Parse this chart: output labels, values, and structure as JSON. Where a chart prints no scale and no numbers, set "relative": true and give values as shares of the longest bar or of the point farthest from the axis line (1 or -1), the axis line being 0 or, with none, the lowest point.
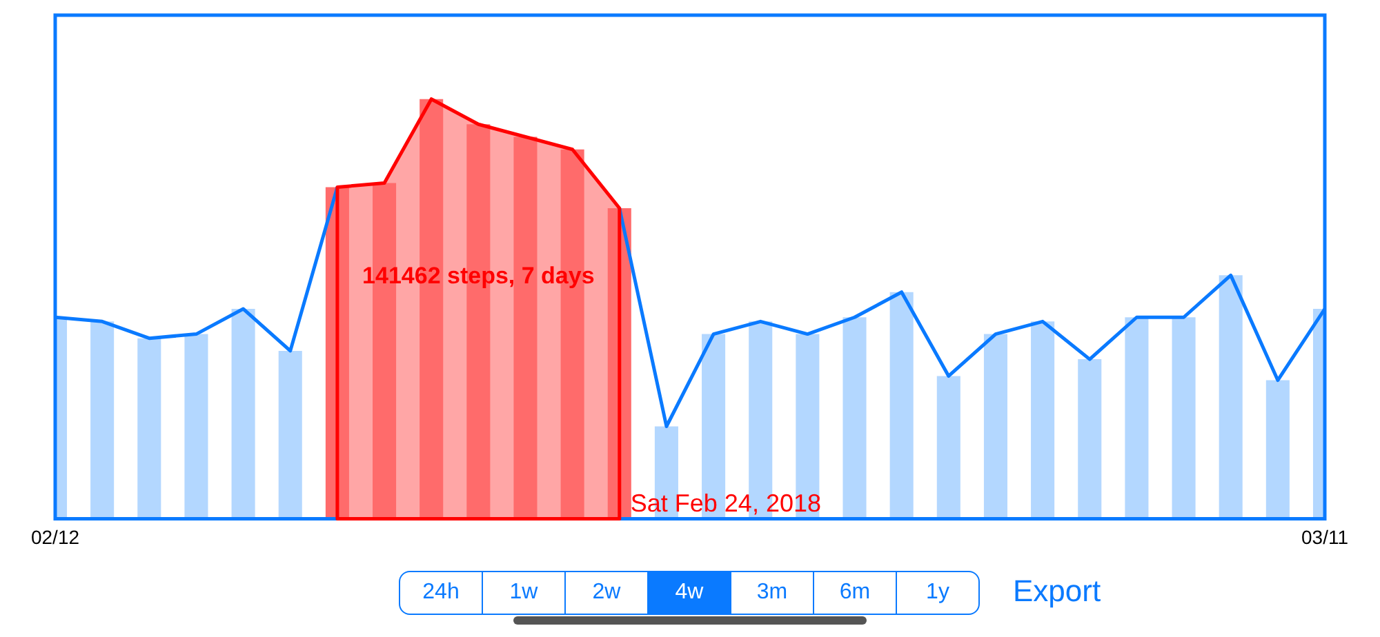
{
  "chart_data": {
    "type": "bar",
    "relative": true,
    "x": [
      "2018-02-12",
      "2018-02-13",
      "2018-02-14",
      "2018-02-15",
      "2018-02-16",
      "2018-02-17",
      "2018-02-18",
      "2018-02-19",
      "2018-02-20",
      "2018-02-21",
      "2018-02-22",
      "2018-02-23",
      "2018-02-24",
      "2018-02-25",
      "2018-02-26",
      "2018-02-27",
      "2018-02-28",
      "2018-03-01",
      "2018-03-02",
      "2018-03-03",
      "2018-03-04",
      "2018-03-05",
      "2018-03-06",
      "2018-03-07",
      "2018-03-08",
      "2018-03-09",
      "2018-03-10",
      "2018-03-11"
    ],
    "xlim": [
      "2018-02-12",
      "2018-03-11"
    ],
    "xticks": [
      {
        "value": "2018-02-12",
        "label": "02/12"
      },
      {
        "value": "2018-03-11",
        "label": "03/11"
      }
    ],
    "series": [
      {
        "color": "#b3d7ff",
        "colors": [
          null,
          null,
          null,
          null,
          null,
          null,
          "#ff6b6b",
          "#ff6b6b",
          "#ff6b6b",
          "#ff6b6b",
          "#ff6b6b",
          "#ff6b6b",
          "#ff6b6b",
          null,
          null,
          null,
          null,
          null,
          null,
          null,
          null,
          null,
          null,
          null,
          null,
          null,
          null,
          null
        ],
        "values": [
          0.48,
          0.47,
          0.43,
          0.44,
          0.5,
          0.4,
          0.79,
          0.8,
          1,
          0.94,
          0.91,
          0.88,
          0.74,
          0.22,
          0.44,
          0.47,
          0.44,
          0.48,
          0.54,
          0.34,
          0.44,
          0.47,
          0.38,
          0.48,
          0.48,
          0.58,
          0.33,
          0.5
        ]
      },
      {
        "type": "line",
        "color": "#0a7aff",
        "values": [
          0.48,
          0.47,
          0.43,
          0.44,
          0.5,
          0.4,
          0.79,
          null,
          null,
          null,
          null,
          null,
          0.74,
          0.22,
          0.44,
          0.47,
          0.44,
          0.48,
          0.54,
          0.34,
          0.44,
          0.47,
          0.38,
          0.48,
          0.48,
          0.58,
          0.33,
          0.5
        ]
      },
      {
        "type": "area",
        "color": "#ff0000",
        "x": [
          "2018-02-18",
          "2018-02-19",
          "2018-02-20",
          "2018-02-21",
          "2018-02-22",
          "2018-02-23",
          "2018-02-24"
        ],
        "values": [
          0.79,
          0.8,
          1,
          0.94,
          0.91,
          0.88,
          0.74
        ]
      }
    ],
    "annotations": [
      "141462 steps, 7 days",
      {
        "text": "Sat Feb 24, 2018",
        "x": "2018-02-24",
        "y": 0
      },
      "24h",
      "1w",
      "2w",
      "4w",
      "3m",
      "6m",
      "1y",
      "Export"
    ],
    "grid": false,
    "legend": false
  }
}
